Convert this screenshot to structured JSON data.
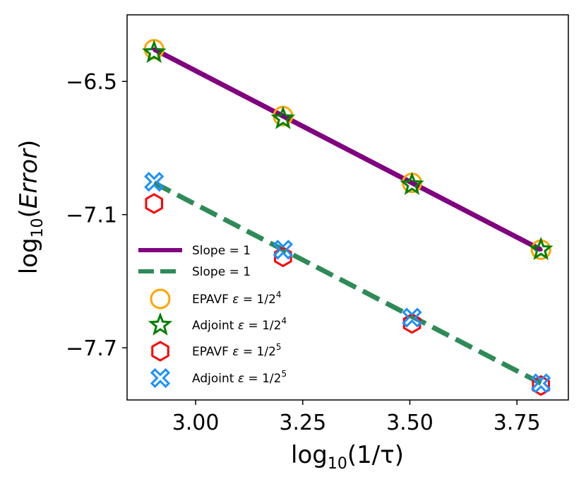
{
  "chart_data": {
    "type": "line",
    "title": "",
    "xlabel": "log10(1/τ)",
    "ylabel": "log10(Error)",
    "xlim": [
      2.84,
      3.87
    ],
    "ylim": [
      -7.935,
      -6.2
    ],
    "xticks": [
      3.0,
      3.25,
      3.5,
      3.75
    ],
    "xtick_labels": [
      "3.00",
      "3.25",
      "3.50",
      "3.75"
    ],
    "yticks": [
      -6.5,
      -7.1,
      -7.7
    ],
    "ytick_labels": [
      "−6.5",
      "−7.1",
      "−7.7"
    ],
    "grid": false,
    "legend_position": "center-left",
    "series": [
      {
        "name": "Slope = 1",
        "kind": "line",
        "style": "solid",
        "color": "#800080",
        "x": [
          2.903,
          3.204,
          3.505,
          3.806
        ],
        "y": [
          -6.355,
          -6.656,
          -6.957,
          -7.258
        ]
      },
      {
        "name": "Slope = 1",
        "kind": "line",
        "style": "dashed",
        "color": "#2e8b57",
        "x": [
          2.903,
          3.204,
          3.505,
          3.806
        ],
        "y": [
          -6.957,
          -7.258,
          -7.559,
          -7.86
        ]
      },
      {
        "name": "EPAVF ε = 1/2",
        "sup": "4",
        "kind": "marker",
        "marker": "circle",
        "color": "#ffa500",
        "x": [
          2.903,
          3.204,
          3.505,
          3.806
        ],
        "y": [
          -6.355,
          -6.656,
          -6.957,
          -7.258
        ]
      },
      {
        "name": "Adjoint ε = 1/2",
        "sup": "4",
        "kind": "marker",
        "marker": "star",
        "color": "#008000",
        "x": [
          2.903,
          3.204,
          3.505,
          3.806
        ],
        "y": [
          -6.37,
          -6.668,
          -6.965,
          -7.258
        ]
      },
      {
        "name": "EPAVF ε = 1/2",
        "sup": "5",
        "kind": "marker",
        "marker": "hexagon",
        "color": "#ff0000",
        "x": [
          2.903,
          3.204,
          3.505,
          3.806
        ],
        "y": [
          -7.05,
          -7.29,
          -7.59,
          -7.87
        ]
      },
      {
        "name": "Adjoint ε = 1/2",
        "sup": "5",
        "kind": "marker",
        "marker": "xfilled",
        "color": "#1e90ff",
        "x": [
          2.903,
          3.204,
          3.505,
          3.806
        ],
        "y": [
          -6.952,
          -7.258,
          -7.564,
          -7.86
        ]
      }
    ]
  }
}
